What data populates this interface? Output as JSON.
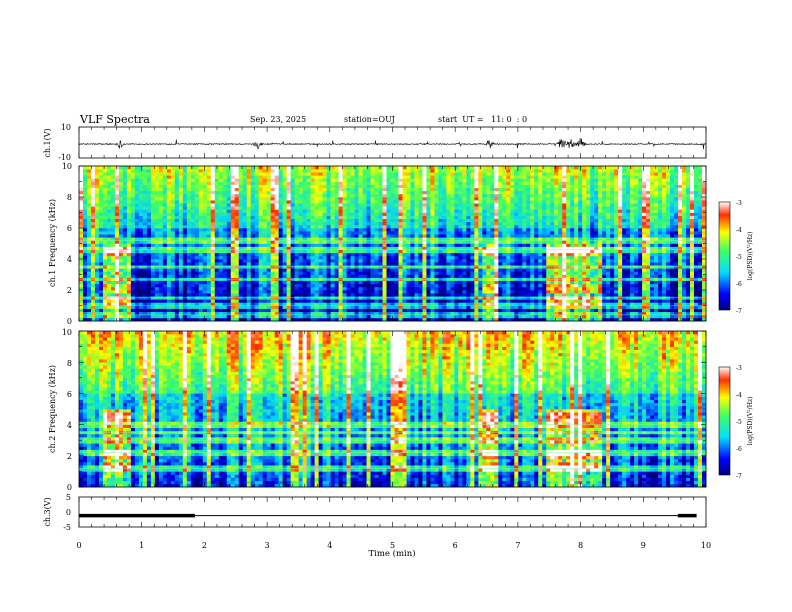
{
  "header": {
    "title": "VLF Spectra",
    "date": "Sep. 23, 2025",
    "station": "station=OUJ",
    "start": "start  UT =   11: 0  : 0"
  },
  "chart_data": [
    {
      "type": "line",
      "panel": "ch1-waveform",
      "ylabel": "ch.1(V)",
      "ylim": [
        -10,
        10
      ],
      "yticks": [
        "10",
        "-10"
      ],
      "xlim": [
        0,
        10
      ],
      "grid": false,
      "baseline": -1,
      "bursts": [
        {
          "t": 0.65,
          "amp": 2.5
        },
        {
          "t": 2.85,
          "amp": 3
        },
        {
          "t": 6.55,
          "amp": 3.5
        },
        {
          "t": 7.7,
          "amp": 4.5
        },
        {
          "t": 7.85,
          "amp": 4.5
        },
        {
          "t": 8.0,
          "amp": 4
        }
      ]
    },
    {
      "type": "heatmap",
      "panel": "ch1-spectrogram",
      "ylabel": "ch.1 Frequency (kHz)",
      "ylim": [
        0,
        10
      ],
      "yticks": [
        "0",
        "2",
        "4",
        "6",
        "8",
        "10"
      ],
      "xlim": [
        0,
        10
      ],
      "colorbar": {
        "label": "log(PSD)(V²/Hz)",
        "range": [
          -7,
          -3
        ],
        "ticks": [
          "-3",
          "-4",
          "-5",
          "-6",
          "-7"
        ]
      },
      "bright_lines_khz": [
        0.4,
        1.0,
        1.5,
        2.7,
        3.5,
        4.6,
        5.2
      ],
      "active_intervals": [
        {
          "t0": 0.4,
          "t1": 0.8,
          "label": "burst-1"
        },
        {
          "t0": 6.45,
          "t1": 6.7,
          "label": "burst-2"
        },
        {
          "t0": 7.45,
          "t1": 8.35,
          "label": "burst-3"
        }
      ]
    },
    {
      "type": "heatmap",
      "panel": "ch2-spectrogram",
      "ylabel": "ch.2 Frequency (kHz)",
      "ylim": [
        0,
        10
      ],
      "yticks": [
        "0",
        "2",
        "4",
        "6",
        "8",
        "10"
      ],
      "xlim": [
        0,
        10
      ],
      "colorbar": {
        "label": "log(PSD)(V²/Hz)",
        "range": [
          -7,
          -3
        ],
        "ticks": [
          "-3",
          "-4",
          "-5",
          "-6",
          "-7"
        ]
      },
      "bright_lines_khz": [
        1.2,
        2.2,
        3.0,
        3.5,
        4.0
      ],
      "active_intervals": [
        {
          "t0": 0.4,
          "t1": 0.8,
          "label": "burst-1"
        },
        {
          "t0": 6.45,
          "t1": 6.7,
          "label": "burst-2"
        },
        {
          "t0": 7.45,
          "t1": 8.35,
          "label": "burst-3"
        }
      ]
    },
    {
      "type": "line",
      "panel": "ch3-waveform",
      "ylabel": "ch.3(V)",
      "ylim": [
        -5,
        5
      ],
      "yticks": [
        "5",
        "0",
        "-5"
      ],
      "xlim": [
        0,
        10
      ],
      "xlabel": "Time (min)",
      "xticks": [
        "0",
        "1",
        "2",
        "3",
        "4",
        "5",
        "6",
        "7",
        "8",
        "9",
        "10"
      ],
      "level": -1.2,
      "thick_segments": [
        [
          0,
          1.85
        ],
        [
          9.55,
          9.85
        ]
      ]
    }
  ]
}
